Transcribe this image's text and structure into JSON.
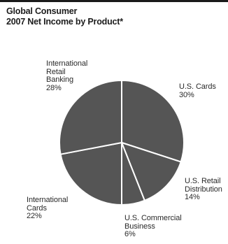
{
  "chart_data": {
    "type": "pie",
    "title": "Global Consumer",
    "subtitle": "2007 Net Income by Product*",
    "slices": [
      {
        "label": "U.S. Cards",
        "value": 30,
        "value_label": "30%"
      },
      {
        "label": "U.S. Retail Distribution",
        "value": 14,
        "value_label": "14%"
      },
      {
        "label": "U.S. Commercial Business",
        "value": 6,
        "value_label": "6%"
      },
      {
        "label": "International Cards",
        "value": 22,
        "value_label": "22%"
      },
      {
        "label": "International Retail Banking",
        "value": 28,
        "value_label": "28%"
      }
    ],
    "colors": {
      "slice_fill": "#555555",
      "separator": "#ffffff"
    },
    "start": "top",
    "direction": "clockwise"
  },
  "labels": {
    "us_cards": "U.S. Cards\n30%",
    "us_retail": "U.S. Retail\nDistribution\n14%",
    "us_commercial": "U.S. Commercial\nBusiness\n6%",
    "intl_cards": "International\nCards\n22%",
    "intl_retail": "International\nRetail\nBanking\n28%"
  }
}
